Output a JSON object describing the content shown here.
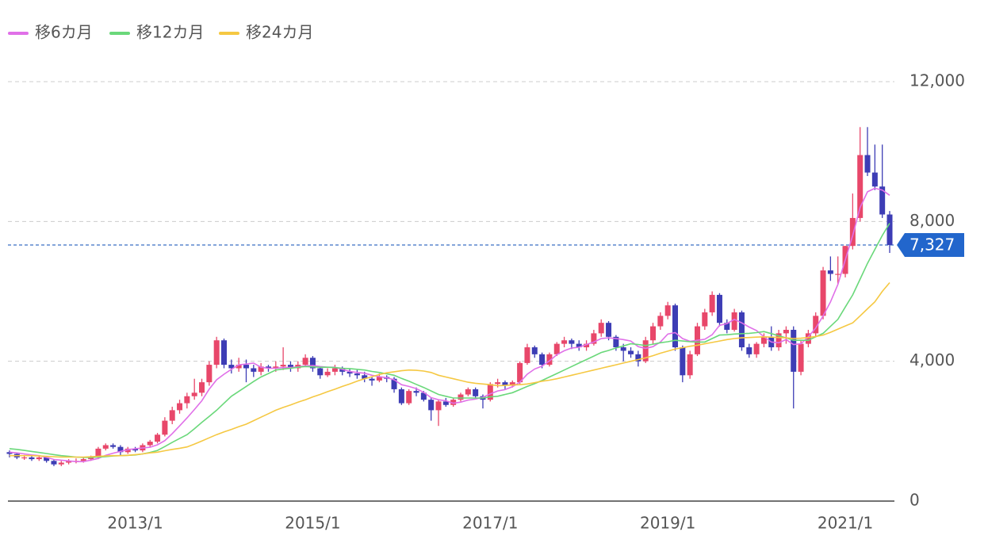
{
  "chart_data": {
    "type": "candlestick",
    "series": [
      {
        "name": "移6カ月",
        "color": "#e070e8",
        "values": [
          1400,
          1380,
          1350,
          1320,
          1300,
          1250,
          1190,
          1170,
          1150,
          1130,
          1130,
          1170,
          1220,
          1310,
          1370,
          1420,
          1470,
          1500,
          1520,
          1540,
          1610,
          1730,
          1930,
          2150,
          2380,
          2620,
          2870,
          3200,
          3470,
          3630,
          3770,
          3900,
          3920,
          3950,
          3830,
          3800,
          3800,
          3820,
          3820,
          3840,
          3870,
          3880,
          3850,
          3830,
          3830,
          3770,
          3710,
          3680,
          3660,
          3600,
          3560,
          3530,
          3470,
          3330,
          3280,
          3220,
          3110,
          2960,
          2900,
          2870,
          2800,
          2830,
          2890,
          2920,
          2970,
          3070,
          3150,
          3190,
          3270,
          3400,
          3630,
          3780,
          3860,
          4010,
          4190,
          4300,
          4380,
          4400,
          4480,
          4550,
          4650,
          4670,
          4650,
          4620,
          4580,
          4420,
          4370,
          4420,
          4550,
          4780,
          4820,
          4650,
          4570,
          4600,
          4630,
          4760,
          5030,
          5080,
          5200,
          5100,
          4980,
          4880,
          4700,
          4550,
          4530,
          4620,
          4480,
          4500,
          4700,
          4950,
          5300,
          5700,
          6200,
          6900,
          7600,
          8400,
          8850,
          8950,
          8900,
          8750
        ]
      },
      {
        "name": "移12カ月",
        "color": "#6ad87a",
        "values": [
          1500,
          1480,
          1450,
          1420,
          1390,
          1360,
          1330,
          1300,
          1280,
          1260,
          1250,
          1250,
          1260,
          1270,
          1290,
          1300,
          1310,
          1320,
          1350,
          1390,
          1450,
          1560,
          1680,
          1790,
          1900,
          2070,
          2250,
          2420,
          2600,
          2800,
          3000,
          3140,
          3280,
          3420,
          3550,
          3650,
          3750,
          3780,
          3800,
          3830,
          3850,
          3840,
          3830,
          3830,
          3820,
          3800,
          3790,
          3770,
          3750,
          3710,
          3680,
          3640,
          3600,
          3510,
          3430,
          3340,
          3250,
          3150,
          3050,
          3000,
          2950,
          2950,
          2950,
          2950,
          2950,
          2980,
          3000,
          3050,
          3100,
          3190,
          3280,
          3360,
          3450,
          3550,
          3650,
          3750,
          3850,
          3950,
          4050,
          4150,
          4250,
          4310,
          4380,
          4440,
          4500,
          4480,
          4450,
          4490,
          4530,
          4560,
          4600,
          4580,
          4560,
          4550,
          4550,
          4650,
          4750,
          4760,
          4780,
          4790,
          4800,
          4820,
          4850,
          4790,
          4730,
          4670,
          4600,
          4600,
          4600,
          4700,
          4800,
          5000,
          5200,
          5550,
          5900,
          6350,
          6800,
          7200,
          7600,
          7950
        ]
      },
      {
        "name": "移24カ月",
        "color": "#f5c842",
        "values": [
          1300,
          1300,
          1300,
          1300,
          1290,
          1280,
          1270,
          1260,
          1260,
          1260,
          1260,
          1270,
          1280,
          1290,
          1300,
          1300,
          1310,
          1330,
          1350,
          1380,
          1400,
          1440,
          1480,
          1510,
          1550,
          1630,
          1720,
          1810,
          1900,
          1980,
          2050,
          2130,
          2200,
          2300,
          2400,
          2500,
          2600,
          2680,
          2750,
          2830,
          2900,
          2980,
          3050,
          3130,
          3200,
          3280,
          3350,
          3430,
          3500,
          3560,
          3620,
          3670,
          3700,
          3730,
          3750,
          3740,
          3720,
          3680,
          3600,
          3550,
          3500,
          3450,
          3400,
          3370,
          3350,
          3330,
          3300,
          3310,
          3320,
          3330,
          3350,
          3390,
          3430,
          3460,
          3500,
          3550,
          3600,
          3650,
          3700,
          3750,
          3800,
          3850,
          3900,
          3950,
          4000,
          4050,
          4100,
          4160,
          4230,
          4290,
          4350,
          4390,
          4430,
          4460,
          4500,
          4540,
          4580,
          4620,
          4650,
          4670,
          4680,
          4690,
          4700,
          4690,
          4680,
          4670,
          4650,
          4660,
          4680,
          4710,
          4750,
          4830,
          4920,
          5010,
          5100,
          5300,
          5500,
          5700,
          6000,
          6250
        ]
      }
    ],
    "categories": [
      null,
      null,
      null,
      null,
      null,
      null,
      null,
      null,
      null,
      null,
      null,
      null,
      null,
      null,
      null,
      null,
      null,
      "2013/1",
      null,
      null,
      null,
      null,
      null,
      null,
      null,
      null,
      null,
      null,
      null,
      null,
      null,
      null,
      null,
      null,
      null,
      null,
      null,
      null,
      null,
      null,
      null,
      "2015/1",
      null,
      null,
      null,
      null,
      null,
      null,
      null,
      null,
      null,
      null,
      null,
      null,
      null,
      null,
      null,
      null,
      null,
      null,
      null,
      null,
      null,
      null,
      null,
      "2017/1",
      null,
      null,
      null,
      null,
      null,
      null,
      null,
      null,
      null,
      null,
      null,
      null,
      null,
      null,
      null,
      null,
      null,
      null,
      null,
      null,
      null,
      null,
      null,
      "2019/1",
      null,
      null,
      null,
      null,
      null,
      null,
      null,
      null,
      null,
      null,
      null,
      null,
      null,
      null,
      null,
      null,
      null,
      null,
      null,
      null,
      null,
      null,
      null,
      "2021/1",
      null,
      null,
      null,
      null,
      null,
      null
    ],
    "open": [
      1400,
      1350,
      1250,
      1250,
      1200,
      1250,
      1150,
      1050,
      1100,
      1150,
      1150,
      1200,
      1250,
      1500,
      1600,
      1550,
      1400,
      1500,
      1450,
      1600,
      1700,
      1900,
      2300,
      2600,
      2800,
      3000,
      3100,
      3400,
      3900,
      4600,
      3900,
      3800,
      3900,
      3800,
      3700,
      3850,
      3800,
      3850,
      3900,
      3800,
      3900,
      4100,
      3800,
      3600,
      3700,
      3800,
      3700,
      3650,
      3600,
      3500,
      3450,
      3550,
      3500,
      3200,
      2800,
      3150,
      3100,
      2900,
      2600,
      2850,
      2750,
      2900,
      3050,
      3200,
      3000,
      2900,
      3350,
      3400,
      3300,
      3400,
      3950,
      4400,
      4200,
      3900,
      4200,
      4500,
      4600,
      4500,
      4400,
      4500,
      4800,
      5100,
      4700,
      4400,
      4300,
      4200,
      4000,
      4600,
      5000,
      5300,
      5600,
      4400,
      3600,
      4200,
      5000,
      5400,
      5900,
      5100,
      4900,
      5400,
      4400,
      4200,
      4500,
      4700,
      4400,
      4800,
      4900,
      3700,
      4500,
      4800,
      5300,
      6600,
      6500,
      6500,
      7300,
      8100,
      9900,
      9400,
      9000,
      8200
    ],
    "high": [
      1450,
      1380,
      1320,
      1300,
      1300,
      1280,
      1180,
      1150,
      1200,
      1220,
      1250,
      1300,
      1550,
      1650,
      1650,
      1600,
      1550,
      1550,
      1650,
      1750,
      1950,
      2400,
      2700,
      2900,
      3100,
      3500,
      3500,
      4000,
      4700,
      4650,
      4050,
      4100,
      4050,
      3900,
      3950,
      3900,
      4000,
      4400,
      4000,
      4000,
      4200,
      4150,
      3850,
      3800,
      3900,
      3850,
      3800,
      3750,
      3700,
      3550,
      3650,
      3600,
      3550,
      3250,
      3200,
      3250,
      3150,
      2950,
      2900,
      2950,
      2950,
      3100,
      3250,
      3250,
      3050,
      3400,
      3500,
      3450,
      3450,
      4000,
      4500,
      4450,
      4250,
      4250,
      4550,
      4700,
      4650,
      4600,
      4600,
      4900,
      5200,
      5150,
      4750,
      4500,
      4400,
      4300,
      4700,
      5100,
      5400,
      5700,
      5650,
      4450,
      4300,
      5100,
      5500,
      6000,
      5950,
      5200,
      5500,
      5450,
      4500,
      4550,
      4800,
      5000,
      4900,
      5000,
      5000,
      4600,
      4900,
      5400,
      6700,
      7000,
      7000,
      7300,
      8800,
      10700,
      10700,
      10200,
      10200,
      8300
    ],
    "low": [
      1250,
      1200,
      1180,
      1150,
      1150,
      1100,
      1000,
      1000,
      1050,
      1080,
      1100,
      1150,
      1200,
      1450,
      1500,
      1300,
      1350,
      1400,
      1400,
      1550,
      1650,
      1850,
      2200,
      2500,
      2650,
      2900,
      3000,
      3300,
      3800,
      3800,
      3650,
      3700,
      3400,
      3550,
      3600,
      3700,
      3700,
      3750,
      3700,
      3700,
      3850,
      3700,
      3500,
      3550,
      3600,
      3600,
      3550,
      3500,
      3400,
      3300,
      3400,
      3400,
      3100,
      2750,
      2750,
      3000,
      2850,
      2300,
      2150,
      2700,
      2700,
      2850,
      3000,
      2950,
      2650,
      2850,
      3250,
      3200,
      3250,
      3350,
      3900,
      4100,
      3800,
      3850,
      4150,
      4400,
      4350,
      4300,
      4300,
      4450,
      4700,
      4600,
      4300,
      4000,
      4100,
      3850,
      3950,
      4500,
      4900,
      5200,
      4300,
      3400,
      3500,
      4150,
      4900,
      5300,
      5000,
      4800,
      4850,
      4300,
      4100,
      4100,
      4400,
      4300,
      4300,
      4500,
      2650,
      3600,
      4400,
      4700,
      5200,
      6300,
      6200,
      6400,
      7200,
      8000,
      9300,
      8900,
      8100,
      7100
    ],
    "close": [
      1350,
      1250,
      1250,
      1200,
      1250,
      1150,
      1050,
      1100,
      1150,
      1150,
      1200,
      1250,
      1500,
      1600,
      1550,
      1400,
      1500,
      1450,
      1600,
      1700,
      1900,
      2300,
      2600,
      2800,
      3000,
      3100,
      3400,
      3900,
      4600,
      3900,
      3800,
      3900,
      3800,
      3700,
      3850,
      3800,
      3850,
      3900,
      3800,
      3900,
      4100,
      3800,
      3600,
      3700,
      3800,
      3700,
      3650,
      3600,
      3500,
      3450,
      3550,
      3500,
      3200,
      2800,
      3150,
      3100,
      2900,
      2600,
      2850,
      2750,
      2900,
      3050,
      3200,
      3000,
      2900,
      3350,
      3400,
      3300,
      3400,
      3950,
      4400,
      4200,
      3900,
      4200,
      4500,
      4600,
      4500,
      4400,
      4500,
      4800,
      5100,
      4700,
      4400,
      4300,
      4200,
      4000,
      4600,
      5000,
      5300,
      5600,
      4400,
      3600,
      4200,
      5000,
      5400,
      5900,
      5100,
      4900,
      5400,
      4400,
      4200,
      4500,
      4700,
      4400,
      4800,
      4900,
      3700,
      4500,
      4800,
      5300,
      6600,
      6500,
      6500,
      7300,
      8100,
      9900,
      9400,
      9000,
      8200,
      7327
    ],
    "last_close_label": "7,327",
    "up_color": "#e8476a",
    "down_color": "#3d3db5",
    "ylim": [
      0,
      12000
    ],
    "yticks": [
      0,
      {
        "value": 4000,
        "label": "4,000"
      },
      {
        "value": 8000,
        "label": "8,000"
      },
      {
        "value": 12000,
        "label": "12,000"
      }
    ],
    "grid": true
  }
}
